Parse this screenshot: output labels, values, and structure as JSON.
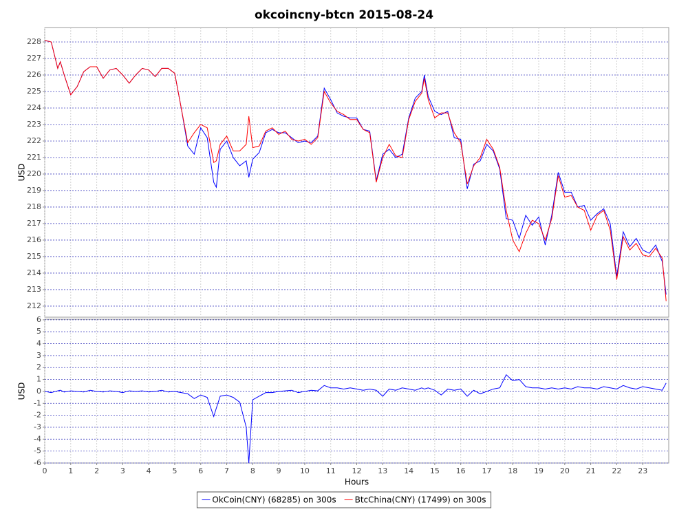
{
  "chart_data": [
    {
      "type": "line",
      "title": "okcoincny-btcn 2015-08-24",
      "y_label": "USD",
      "legend": "bottom",
      "grid": true,
      "xlim": [
        0,
        24
      ],
      "ylim": [
        211.33,
        228.875
      ],
      "yticks": [
        212,
        213,
        214,
        215,
        216,
        217,
        218,
        219,
        220,
        221,
        222,
        223,
        224,
        225,
        226,
        227,
        228
      ],
      "x": [
        0,
        0.25,
        0.5,
        0.6,
        0.75,
        1,
        1.25,
        1.5,
        1.75,
        2,
        2.25,
        2.5,
        2.75,
        3,
        3.25,
        3.5,
        3.75,
        4,
        4.25,
        4.5,
        4.75,
        5,
        5.25,
        5.5,
        5.75,
        6,
        6.25,
        6.5,
        6.6,
        6.75,
        7,
        7.25,
        7.5,
        7.75,
        7.85,
        8,
        8.25,
        8.5,
        8.75,
        9,
        9.25,
        9.5,
        9.75,
        10,
        10.25,
        10.5,
        10.75,
        11,
        11.25,
        11.5,
        11.75,
        12,
        12.25,
        12.5,
        12.75,
        13,
        13.25,
        13.5,
        13.75,
        14,
        14.25,
        14.5,
        14.6,
        14.75,
        15,
        15.25,
        15.5,
        15.75,
        16,
        16.25,
        16.5,
        16.75,
        17,
        17.25,
        17.5,
        17.75,
        18,
        18.25,
        18.5,
        18.75,
        19,
        19.25,
        19.5,
        19.75,
        20,
        20.25,
        20.5,
        20.75,
        21,
        21.25,
        21.5,
        21.75,
        22,
        22.25,
        22.5,
        22.75,
        23,
        23.25,
        23.5,
        23.75,
        23.9
      ],
      "series": [
        {
          "name": "OkCoin(CNY) (68285) on 300s",
          "color": "#0000ff",
          "values": [
            228.1,
            228.0,
            226.4,
            226.8,
            226.0,
            224.8,
            225.3,
            226.2,
            226.5,
            226.5,
            225.8,
            226.3,
            226.4,
            226.0,
            225.5,
            226.0,
            226.4,
            226.3,
            225.9,
            226.4,
            226.4,
            226.1,
            224.0,
            221.7,
            221.2,
            222.8,
            222.2,
            219.5,
            219.2,
            221.5,
            222.0,
            221.0,
            220.5,
            220.8,
            219.8,
            220.9,
            221.3,
            222.5,
            222.7,
            222.5,
            222.5,
            222.2,
            221.9,
            222.0,
            221.9,
            222.3,
            225.2,
            224.5,
            223.7,
            223.5,
            223.4,
            223.4,
            222.7,
            222.6,
            219.6,
            221.2,
            221.5,
            221.0,
            221.2,
            223.4,
            224.6,
            225.0,
            226.0,
            224.7,
            223.8,
            223.6,
            223.8,
            222.2,
            222.1,
            219.1,
            220.6,
            220.8,
            221.8,
            221.4,
            220.3,
            217.3,
            217.2,
            216.1,
            217.5,
            216.9,
            217.4,
            215.7,
            217.5,
            220.1,
            218.9,
            218.9,
            218.0,
            218.1,
            217.2,
            217.6,
            217.9,
            217.0,
            213.8,
            216.5,
            215.6,
            216.1,
            215.4,
            215.2,
            215.7,
            214.7,
            212.7
          ]
        },
        {
          "name": "BtcChina(CNY) (17499) on 300s",
          "color": "#ff0000",
          "values": [
            228.1,
            228.0,
            226.4,
            226.8,
            226.0,
            224.8,
            225.3,
            226.2,
            226.5,
            226.5,
            225.8,
            226.3,
            226.4,
            226.0,
            225.5,
            226.0,
            226.4,
            226.3,
            225.9,
            226.4,
            226.4,
            226.1,
            224.0,
            221.9,
            222.5,
            223.0,
            222.8,
            220.7,
            220.8,
            221.8,
            222.3,
            221.4,
            221.4,
            221.8,
            223.5,
            221.6,
            221.7,
            222.6,
            222.8,
            222.4,
            222.6,
            222.1,
            222.0,
            222.1,
            221.8,
            222.2,
            225.0,
            224.3,
            223.8,
            223.6,
            223.3,
            223.3,
            222.7,
            222.5,
            219.5,
            221.0,
            221.8,
            221.1,
            221.0,
            223.3,
            224.4,
            224.9,
            225.8,
            224.5,
            223.4,
            223.7,
            223.7,
            222.5,
            221.9,
            219.4,
            220.5,
            221.0,
            222.1,
            221.5,
            220.4,
            217.8,
            216.0,
            215.3,
            216.4,
            217.2,
            217.0,
            216.0,
            217.3,
            219.9,
            218.6,
            218.7,
            218.0,
            217.8,
            216.6,
            217.5,
            217.8,
            216.6,
            213.6,
            216.2,
            215.4,
            215.8,
            215.1,
            215.0,
            215.5,
            214.9,
            212.3
          ]
        }
      ]
    },
    {
      "type": "line",
      "x_label": "Hours",
      "y_label": "USD",
      "grid": true,
      "xlim": [
        0,
        24
      ],
      "ylim": [
        -6,
        6.05
      ],
      "xticks": [
        0,
        1,
        2,
        3,
        4,
        5,
        6,
        7,
        8,
        9,
        10,
        11,
        12,
        13,
        14,
        15,
        16,
        17,
        18,
        19,
        20,
        21,
        22,
        23
      ],
      "yticks": [
        -6,
        -5,
        -4,
        -3,
        -2,
        -1,
        0,
        1,
        2,
        3,
        4,
        5,
        6
      ],
      "x": [
        0,
        0.25,
        0.5,
        0.6,
        0.75,
        1,
        1.25,
        1.5,
        1.75,
        2,
        2.25,
        2.5,
        2.75,
        3,
        3.25,
        3.5,
        3.75,
        4,
        4.25,
        4.5,
        4.75,
        5,
        5.25,
        5.5,
        5.75,
        6,
        6.25,
        6.5,
        6.6,
        6.75,
        7,
        7.25,
        7.5,
        7.75,
        7.85,
        8,
        8.25,
        8.5,
        8.75,
        9,
        9.25,
        9.5,
        9.75,
        10,
        10.25,
        10.5,
        10.75,
        11,
        11.25,
        11.5,
        11.75,
        12,
        12.25,
        12.5,
        12.75,
        13,
        13.25,
        13.5,
        13.75,
        14,
        14.25,
        14.5,
        14.6,
        14.75,
        15,
        15.25,
        15.5,
        15.75,
        16,
        16.25,
        16.5,
        16.75,
        17,
        17.25,
        17.5,
        17.75,
        18,
        18.25,
        18.5,
        18.75,
        19,
        19.25,
        19.5,
        19.75,
        20,
        20.25,
        20.5,
        20.75,
        21,
        21.25,
        21.5,
        21.75,
        22,
        22.25,
        22.5,
        22.75,
        23,
        23.25,
        23.5,
        23.75,
        23.9
      ],
      "series": [
        {
          "color": "#0000ff",
          "values": [
            0.0,
            -0.1,
            0.05,
            0.1,
            -0.05,
            0.05,
            0.0,
            -0.05,
            0.1,
            0.0,
            -0.05,
            0.05,
            0.0,
            -0.1,
            0.05,
            0.0,
            0.05,
            -0.05,
            0.0,
            0.1,
            -0.05,
            0.0,
            -0.1,
            -0.2,
            -0.6,
            -0.3,
            -0.5,
            -2.1,
            -1.4,
            -0.4,
            -0.3,
            -0.5,
            -0.9,
            -3.0,
            -6.0,
            -0.7,
            -0.4,
            -0.1,
            -0.1,
            0.0,
            0.05,
            0.1,
            -0.1,
            0.0,
            0.1,
            0.05,
            0.5,
            0.3,
            0.3,
            0.2,
            0.3,
            0.2,
            0.1,
            0.2,
            0.1,
            -0.4,
            0.2,
            0.1,
            0.3,
            0.2,
            0.1,
            0.3,
            0.2,
            0.3,
            0.1,
            -0.3,
            0.2,
            0.1,
            0.2,
            -0.4,
            0.1,
            -0.2,
            0.0,
            0.2,
            0.3,
            1.4,
            0.9,
            1.0,
            0.4,
            0.3,
            0.3,
            0.2,
            0.3,
            0.2,
            0.3,
            0.2,
            0.4,
            0.3,
            0.3,
            0.2,
            0.4,
            0.3,
            0.2,
            0.5,
            0.3,
            0.2,
            0.4,
            0.3,
            0.2,
            0.1,
            0.7
          ]
        }
      ]
    }
  ]
}
